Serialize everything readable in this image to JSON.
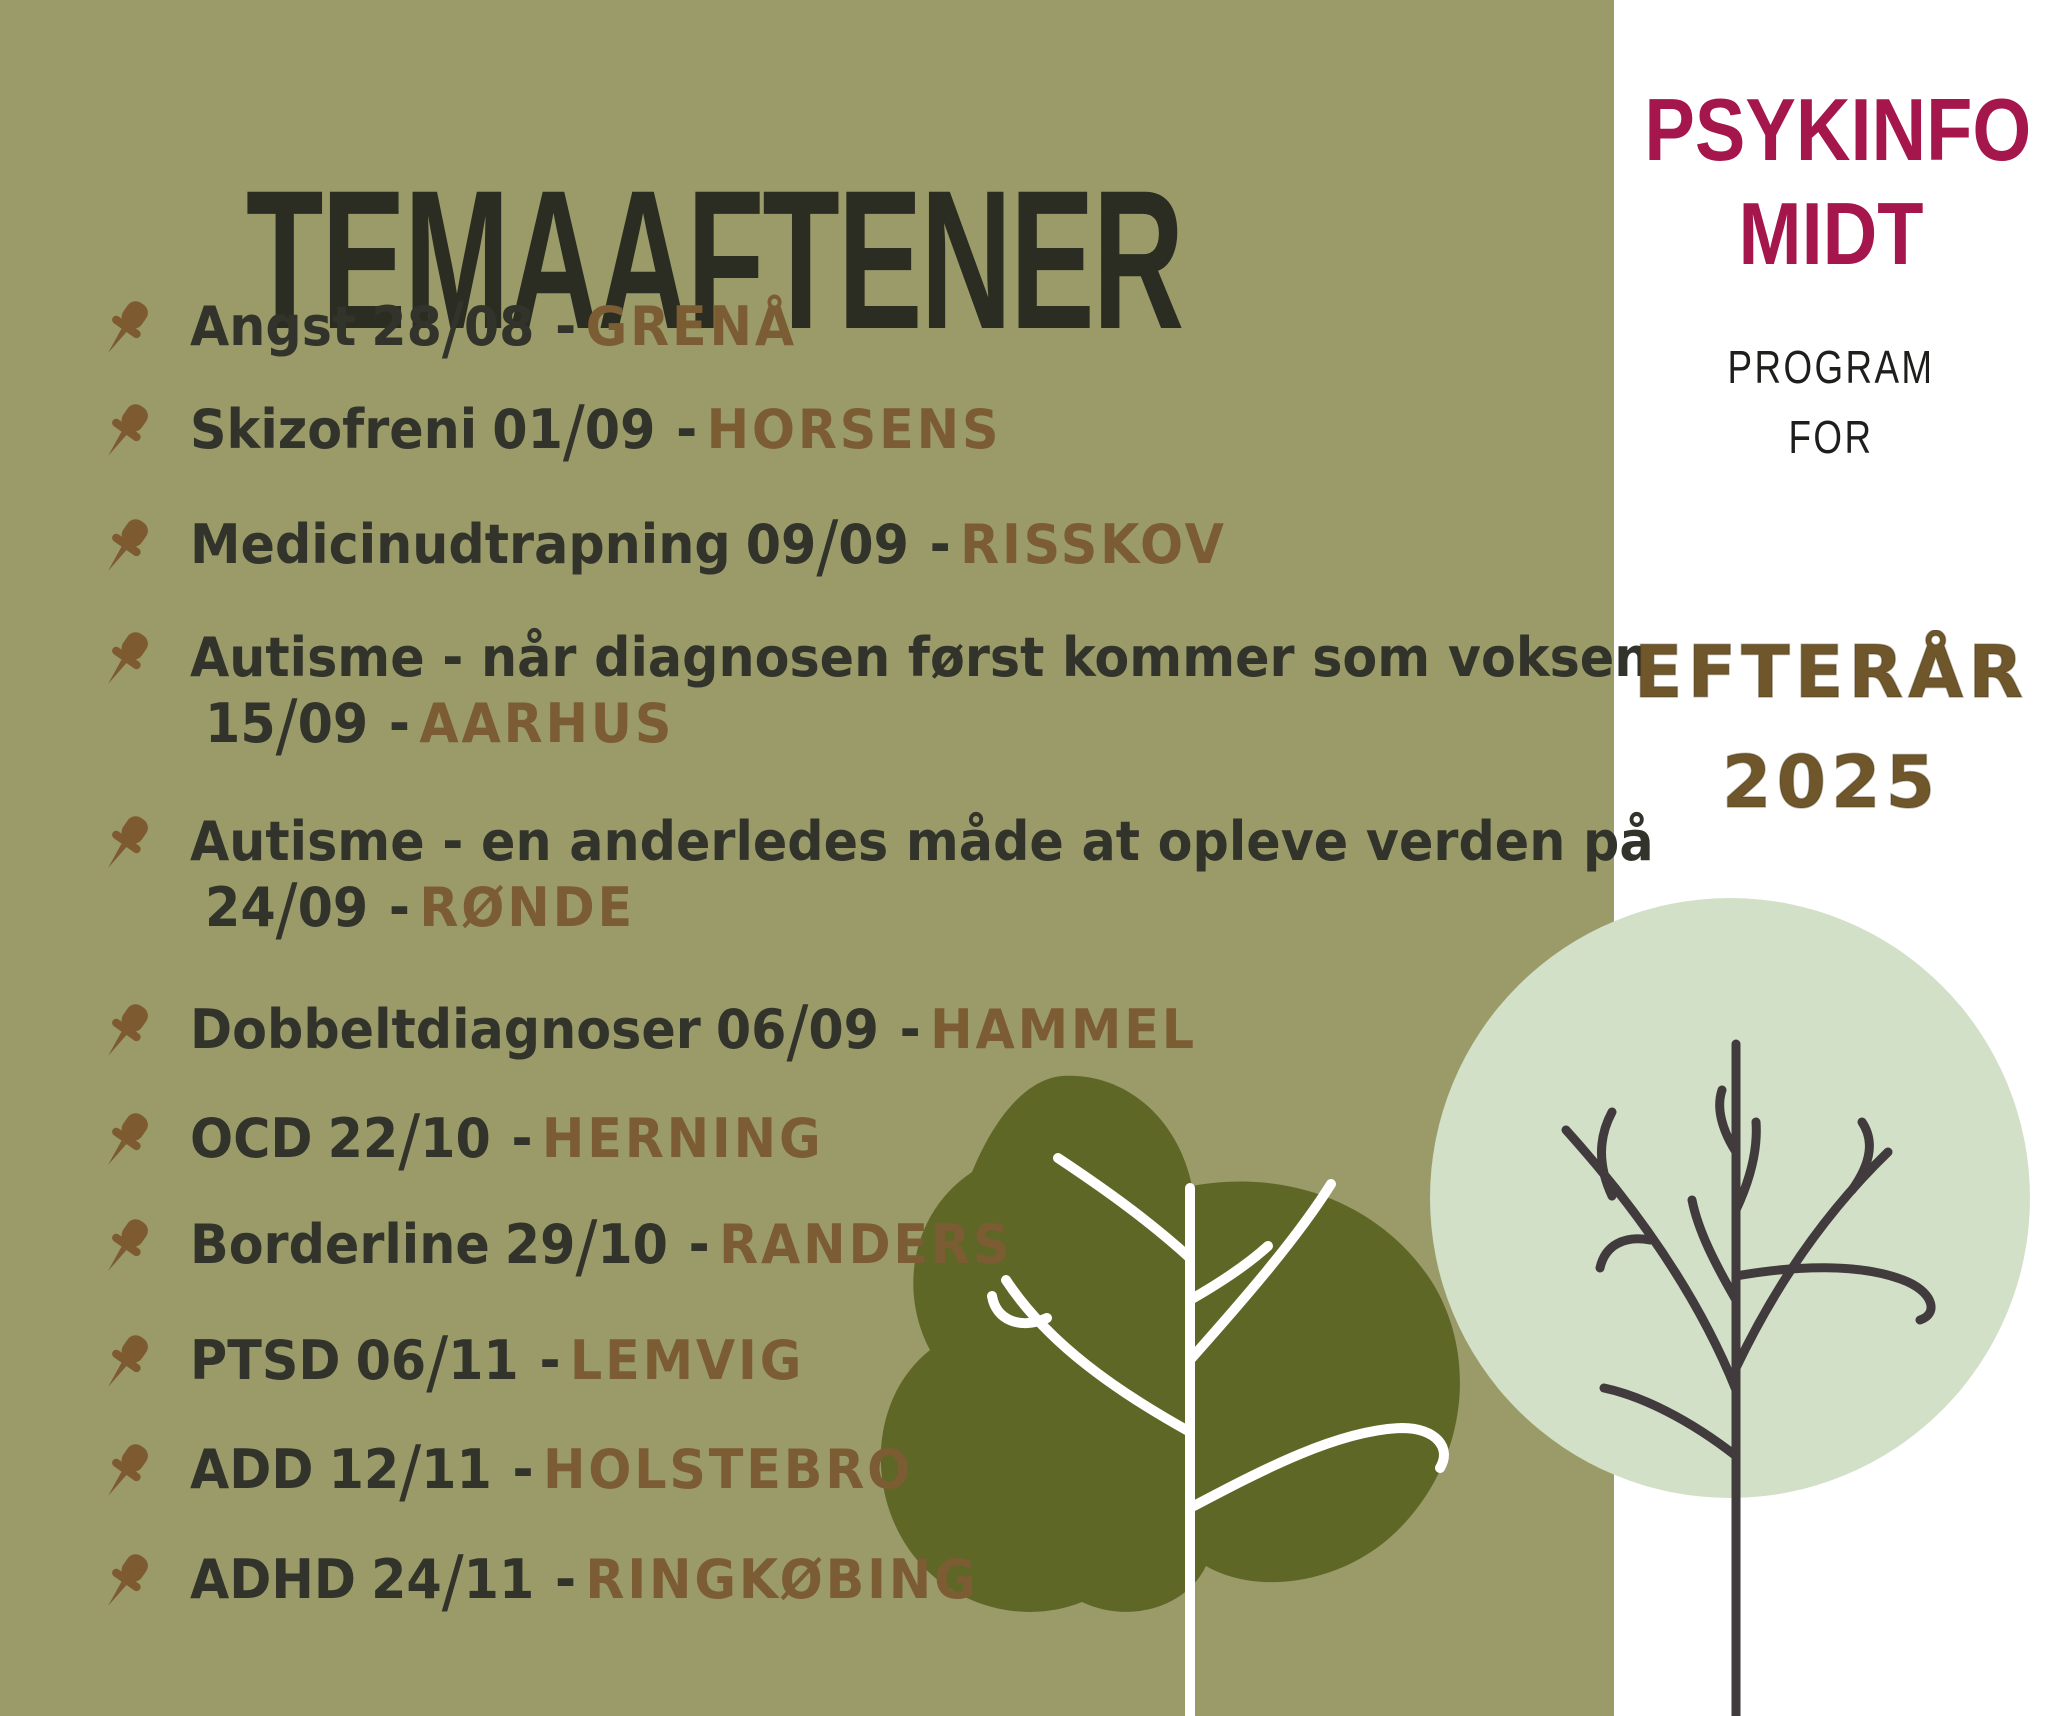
{
  "poster": {
    "title": "TEMAAFTENER",
    "separator": "-",
    "events": [
      {
        "topic": "Angst",
        "date": "28/08",
        "location": "GRENÅ",
        "two_line": false
      },
      {
        "topic": "Skizofreni",
        "date": "01/09",
        "location": "HORSENS",
        "two_line": false
      },
      {
        "topic": "Medicinudtrapning",
        "date": "09/09",
        "location": "RISSKOV",
        "two_line": false
      },
      {
        "topic": "Autisme - når diagnosen først kommer som voksen",
        "date": "15/09",
        "location": "AARHUS",
        "two_line": true
      },
      {
        "topic": "Autisme - en anderledes måde at opleve verden på",
        "date": "24/09",
        "location": "RØNDE",
        "two_line": true
      },
      {
        "topic": "Dobbeltdiagnoser",
        "date": "06/09",
        "location": "HAMMEL",
        "two_line": false
      },
      {
        "topic": "OCD",
        "date": "22/10",
        "location": "HERNING",
        "two_line": false
      },
      {
        "topic": "Borderline",
        "date": "29/10",
        "location": "RANDERS",
        "two_line": false
      },
      {
        "topic": "PTSD",
        "date": "06/11",
        "location": "LEMVIG",
        "two_line": false
      },
      {
        "topic": "ADD",
        "date": "12/11",
        "location": "HOLSTEBRO",
        "two_line": false
      },
      {
        "topic": "ADHD",
        "date": "24/11",
        "location": "RINGKØBING",
        "two_line": false
      }
    ],
    "sidebar": {
      "org_line1": "PSYKINFO",
      "org_line2": "MIDT",
      "program_line1": "PROGRAM",
      "program_line2": "FOR",
      "season": "EFTERÅR",
      "year": "2025"
    },
    "icons": {
      "event_bullet": "pushpin-icon"
    },
    "colors": {
      "olive_bg": "#9a9b69",
      "panel_white": "#ffffff",
      "ink": "#2b2c22",
      "text_dark": "#32332a",
      "brown": "#7c5c33",
      "pin_brown": "#7d5a30",
      "crimson": "#a5174c",
      "program_ink": "#1e1e1c",
      "season_brown": "#6f562b",
      "tree_dark_olive": "#5f6727",
      "tree_light_green": "#d2e0c8",
      "branch_dark": "#413b3d",
      "branch_white": "#ffffff"
    }
  }
}
